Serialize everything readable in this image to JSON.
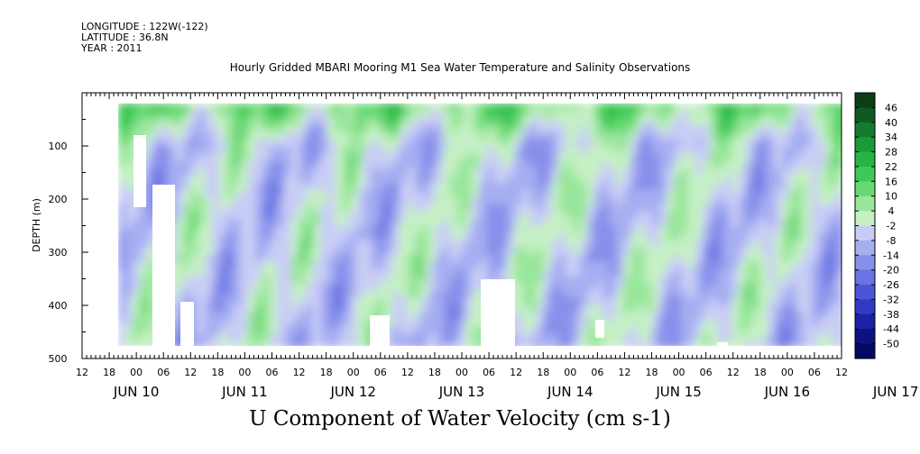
{
  "header": {
    "longitude": "LONGITUDE : 122W(-122)",
    "latitude": "LATITUDE : 36.8N",
    "year": "YEAR : 2011"
  },
  "chart_data": {
    "type": "heatmap",
    "title": "Hourly Gridded MBARI Mooring M1 Sea Water Temperature and Salinity Observations",
    "variable_title": "U Component of Water Velocity (cm s-1)",
    "ylabel": "DEPTH (m)",
    "y_inverted": true,
    "ylim": [
      0,
      500
    ],
    "y_ticks": [
      100,
      200,
      300,
      400,
      500
    ],
    "y_tick_labels": [
      "100",
      "200",
      "300",
      "400",
      "500"
    ],
    "data_depth_range": [
      20,
      480
    ],
    "x_hour_labels": [
      "12",
      "18",
      "00",
      "06",
      "12",
      "18",
      "00",
      "06",
      "12",
      "18",
      "00",
      "06",
      "12",
      "18",
      "00",
      "06",
      "12",
      "18",
      "00",
      "06",
      "12",
      "18",
      "00",
      "06",
      "12",
      "18",
      "00",
      "06",
      "12"
    ],
    "x_day_labels": [
      "JUN 10",
      "JUN 11",
      "JUN 12",
      "JUN 13",
      "JUN 14",
      "JUN 15",
      "JUN 16",
      "JUN 17"
    ],
    "colorbar": {
      "labels": [
        "46",
        "40",
        "34",
        "28",
        "22",
        "16",
        "10",
        "4",
        "-2",
        "-8",
        "-14",
        "-20",
        "-26",
        "-32",
        "-38",
        "-44",
        "-50"
      ],
      "colors": [
        "#0b3d17",
        "#0f5a22",
        "#147a2e",
        "#1a9a38",
        "#25b544",
        "#3ec855",
        "#68d873",
        "#9ae69c",
        "#c5f0c4",
        "#c9cdf5",
        "#a6aef2",
        "#8790ea",
        "#6a73e2",
        "#4c55d6",
        "#3039c4",
        "#1c22a6",
        "#0e1280",
        "#060863"
      ]
    },
    "grid": false
  }
}
